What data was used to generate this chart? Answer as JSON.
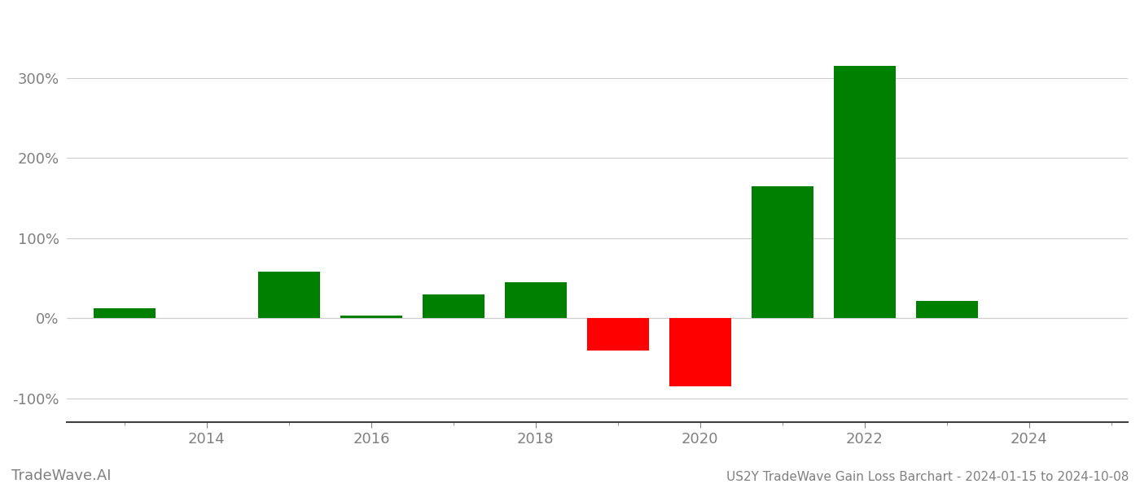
{
  "years": [
    2013,
    2015,
    2016,
    2017,
    2018,
    2019,
    2020,
    2021,
    2022,
    2023
  ],
  "values": [
    12,
    58,
    3,
    30,
    45,
    -40,
    -85,
    165,
    315,
    22
  ],
  "colors": [
    "#008000",
    "#008000",
    "#008000",
    "#008000",
    "#008000",
    "#ff0000",
    "#ff0000",
    "#008000",
    "#008000",
    "#008000"
  ],
  "title": "US2Y TradeWave Gain Loss Barchart - 2024-01-15 to 2024-10-08",
  "watermark": "TradeWave.AI",
  "xlim": [
    2012.3,
    2025.2
  ],
  "ylim": [
    -130,
    370
  ],
  "yticks": [
    -100,
    0,
    100,
    200,
    300
  ],
  "xticks": [
    2014,
    2016,
    2018,
    2020,
    2022,
    2024
  ],
  "bar_width": 0.75,
  "grid_color": "#cccccc",
  "background_color": "#ffffff",
  "tick_label_color": "#808080",
  "bottom_label_color": "#808080",
  "title_fontsize": 11,
  "tick_fontsize": 13,
  "watermark_fontsize": 13
}
